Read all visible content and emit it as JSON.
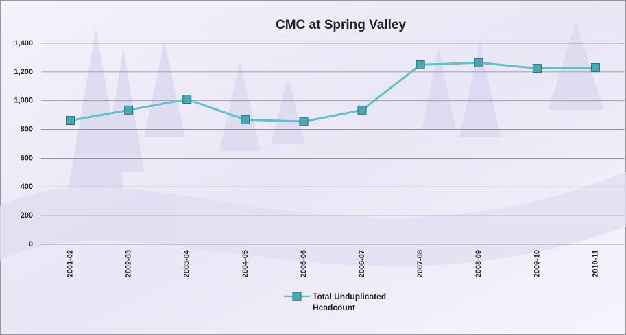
{
  "chart_data": {
    "type": "line",
    "title": "CMC at Spring Valley",
    "categories": [
      "2001-02",
      "2002-03",
      "2003-04",
      "2004-05",
      "2005-06",
      "2006-07",
      "2007-08",
      "2008-09",
      "2009-10",
      "2010-11"
    ],
    "series": [
      {
        "name": "Total Unduplicated Headcount",
        "color": "#5bc3cc",
        "values": [
          862,
          935,
          1010,
          868,
          855,
          935,
          1250,
          1265,
          1225,
          1230
        ]
      }
    ],
    "ylim": [
      0,
      1400
    ],
    "yticks": [
      0,
      200,
      400,
      600,
      800,
      {
        "value": 1000,
        "label": "1,000"
      },
      {
        "value": 1200,
        "label": "1,200"
      },
      {
        "value": 1400,
        "label": "1,400"
      }
    ],
    "grid": true
  }
}
